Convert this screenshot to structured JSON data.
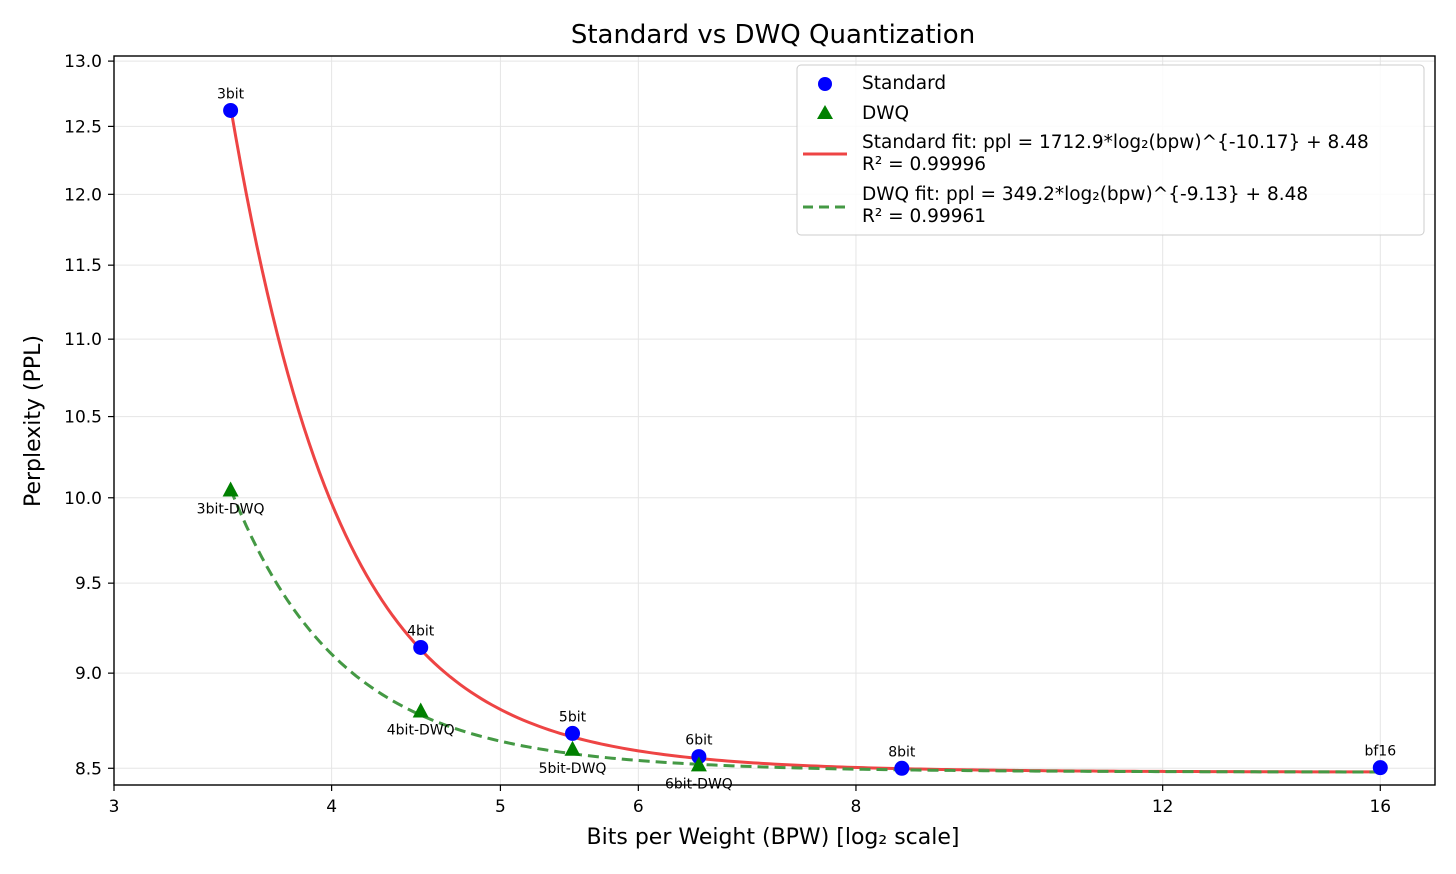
{
  "chart_data": {
    "type": "scatter",
    "title": "Standard vs DWQ Quantization",
    "xlabel": "Bits per Weight (BPW) [log₂ scale]",
    "ylabel": "Perplexity (PPL)",
    "x_scale": "log2",
    "y_scale": "log",
    "xlim": [
      3,
      17.2
    ],
    "ylim": [
      8.415,
      13.04
    ],
    "x_ticks": [
      3,
      4,
      5,
      6,
      8,
      12,
      16
    ],
    "x_tick_labels": [
      "3",
      "4",
      "5",
      "6",
      "8",
      "12",
      "16"
    ],
    "y_ticks": [
      8.5,
      9.0,
      9.5,
      10.0,
      10.5,
      11.0,
      11.5,
      12.0,
      12.5,
      13.0
    ],
    "y_tick_labels": [
      "8.5",
      "9.0",
      "9.5",
      "10.0",
      "10.5",
      "11.0",
      "11.5",
      "12.0",
      "12.5",
      "13.0"
    ],
    "grid": true,
    "legend_position": "top-right",
    "series": [
      {
        "name": "Standard",
        "marker": "circle",
        "color": "#0000ff",
        "points": [
          {
            "label": "3bit",
            "x": 3.5,
            "y": 12.62
          },
          {
            "label": "4bit",
            "x": 4.5,
            "y": 9.14
          },
          {
            "label": "5bit",
            "x": 5.5,
            "y": 8.68
          },
          {
            "label": "6bit",
            "x": 6.5,
            "y": 8.56
          },
          {
            "label": "8bit",
            "x": 8.5,
            "y": 8.5
          },
          {
            "label": "bf16",
            "x": 16,
            "y": 8.503
          }
        ]
      },
      {
        "name": "DWQ",
        "marker": "triangle",
        "color": "#008000",
        "points": [
          {
            "label": "3bit-DWQ",
            "x": 3.5,
            "y": 10.05
          },
          {
            "label": "4bit-DWQ",
            "x": 4.5,
            "y": 8.8
          },
          {
            "label": "5bit-DWQ",
            "x": 5.5,
            "y": 8.6
          },
          {
            "label": "6bit-DWQ",
            "x": 6.5,
            "y": 8.52
          }
        ]
      }
    ],
    "fits": [
      {
        "name": "Standard fit",
        "legend_line1": "Standard fit: ppl = 1712.9*log₂(bpw)^{-10.17} + 8.48",
        "legend_line2": "R² = 0.99996",
        "a": 1712.9,
        "b": -10.17,
        "c": 8.48,
        "color": "#ee4444",
        "dash": "solid",
        "x_range": [
          3.5,
          16
        ]
      },
      {
        "name": "DWQ fit",
        "legend_line1": "DWQ fit: ppl = 349.2*log₂(bpw)^{-9.13} + 8.48",
        "legend_line2": "R² = 0.99961",
        "a": 349.2,
        "b": -9.13,
        "c": 8.48,
        "color": "#449944",
        "dash": "dashed",
        "x_range": [
          3.5,
          16
        ]
      }
    ]
  }
}
